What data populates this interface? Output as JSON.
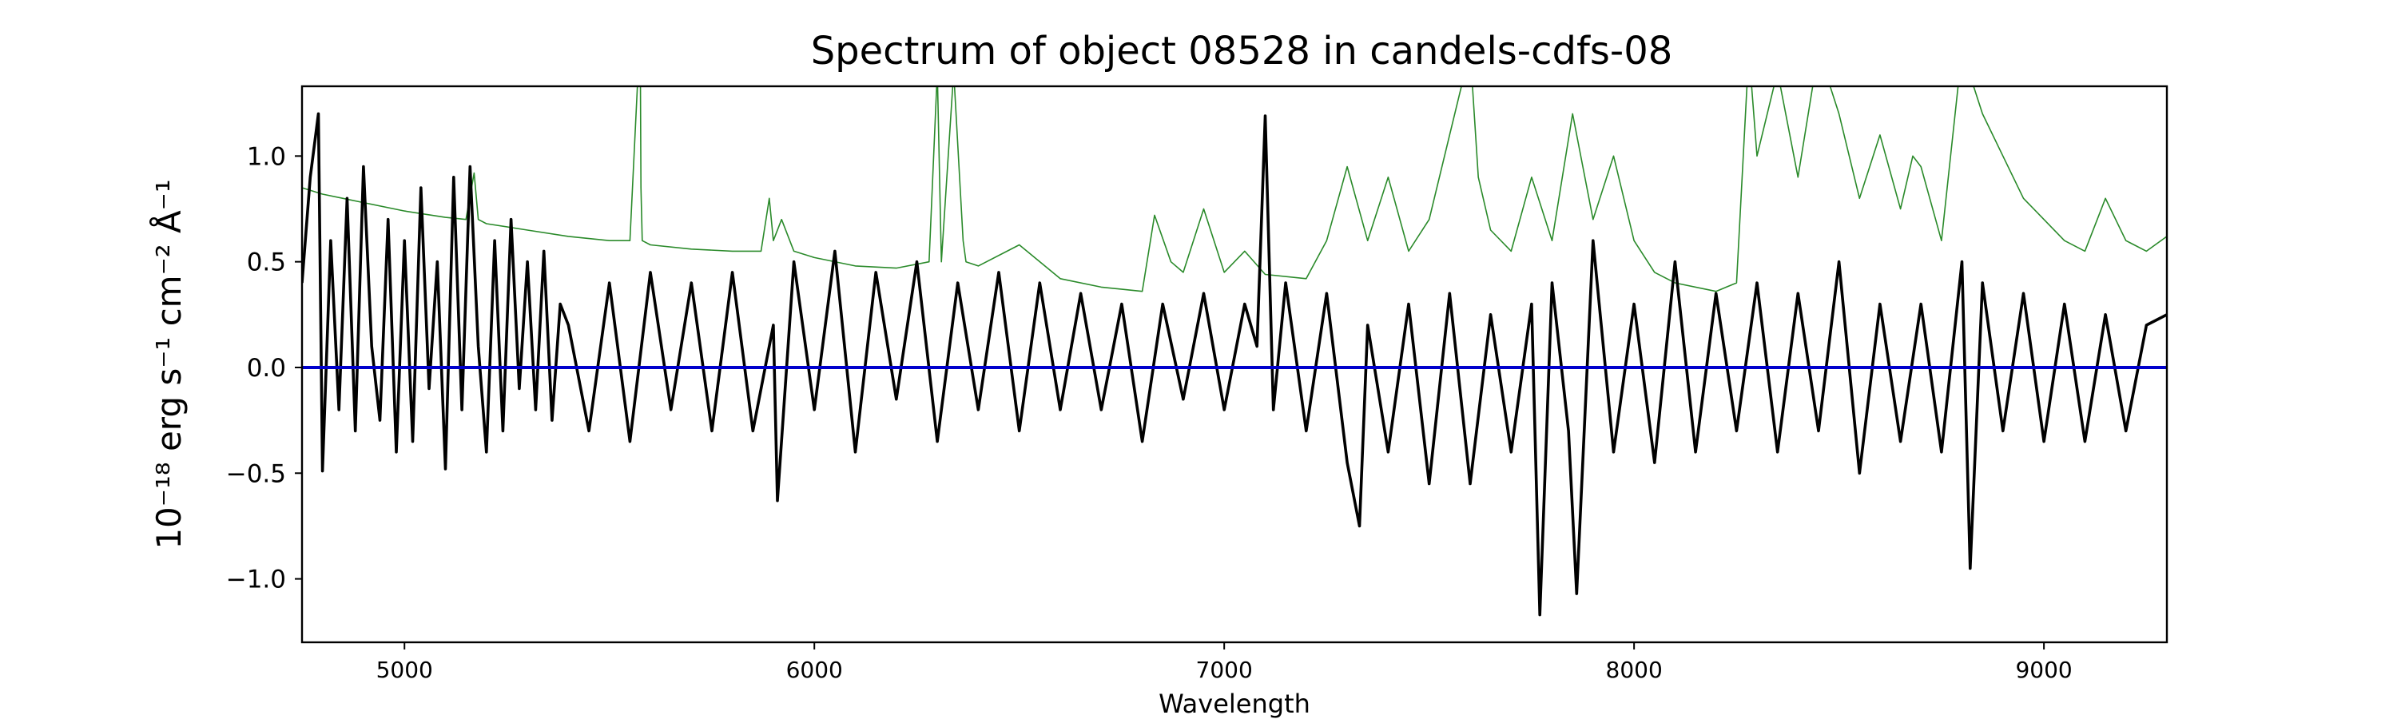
{
  "chart_data": {
    "type": "line",
    "title": "Spectrum of object 08528 in candels-cdfs-08",
    "xlabel": "Wavelength",
    "ylabel": "10⁻¹⁸ erg s⁻¹ cm⁻² Å⁻¹",
    "xlim": [
      4750,
      9300
    ],
    "ylim": [
      -1.3,
      1.33
    ],
    "x_ticks": [
      5000,
      6000,
      7000,
      8000,
      9000
    ],
    "x_tick_labels": [
      "5000",
      "6000",
      "7000",
      "8000",
      "9000"
    ],
    "y_ticks": [
      1.0,
      0.5,
      0.0,
      -0.5,
      -1.0
    ],
    "y_tick_labels": [
      "1.0",
      "0.5",
      "0.0",
      "−0.5",
      "−1.0"
    ],
    "grid": false,
    "series": [
      {
        "role": "noise",
        "color": "#2a8a2a",
        "x": [
          4750,
          4800,
          4850,
          4900,
          5000,
          5100,
          5150,
          5170,
          5180,
          5200,
          5300,
          5400,
          5500,
          5550,
          5575,
          5577,
          5580,
          5600,
          5700,
          5800,
          5870,
          5890,
          5900,
          5920,
          5950,
          6000,
          6100,
          6200,
          6280,
          6300,
          6310,
          6340,
          6363,
          6370,
          6400,
          6500,
          6600,
          6700,
          6800,
          6830,
          6870,
          6900,
          6950,
          7000,
          7050,
          7100,
          7200,
          7250,
          7300,
          7350,
          7400,
          7450,
          7500,
          7550,
          7600,
          7620,
          7650,
          7700,
          7750,
          7800,
          7850,
          7900,
          7950,
          8000,
          8050,
          8100,
          8200,
          8250,
          8280,
          8300,
          8350,
          8400,
          8450,
          8500,
          8550,
          8600,
          8650,
          8680,
          8700,
          8750,
          8800,
          8850,
          8900,
          8950,
          9000,
          9050,
          9100,
          9150,
          9200,
          9250,
          9300
        ],
        "values": [
          0.85,
          0.82,
          0.8,
          0.78,
          0.74,
          0.71,
          0.7,
          0.92,
          0.7,
          0.68,
          0.65,
          0.62,
          0.6,
          0.6,
          1.6,
          0.85,
          0.6,
          0.58,
          0.56,
          0.55,
          0.55,
          0.8,
          0.6,
          0.7,
          0.55,
          0.52,
          0.48,
          0.47,
          0.5,
          1.4,
          0.5,
          1.4,
          0.6,
          0.5,
          0.48,
          0.58,
          0.42,
          0.38,
          0.36,
          0.72,
          0.5,
          0.45,
          0.75,
          0.45,
          0.55,
          0.44,
          0.42,
          0.6,
          0.95,
          0.6,
          0.9,
          0.55,
          0.7,
          1.1,
          1.5,
          0.9,
          0.65,
          0.55,
          0.9,
          0.6,
          1.2,
          0.7,
          1.0,
          0.6,
          0.45,
          0.4,
          0.36,
          0.4,
          1.5,
          1.0,
          1.4,
          0.9,
          1.5,
          1.2,
          0.8,
          1.1,
          0.75,
          1.0,
          0.95,
          0.6,
          1.5,
          1.2,
          1.0,
          0.8,
          0.7,
          0.6,
          0.55,
          0.8,
          0.6,
          0.55,
          0.62
        ]
      },
      {
        "role": "flux",
        "color": "#000000",
        "x": [
          4750,
          4770,
          4790,
          4800,
          4820,
          4840,
          4860,
          4880,
          4900,
          4920,
          4940,
          4960,
          4980,
          5000,
          5020,
          5040,
          5060,
          5080,
          5100,
          5120,
          5140,
          5160,
          5180,
          5200,
          5220,
          5240,
          5260,
          5280,
          5300,
          5320,
          5340,
          5360,
          5380,
          5400,
          5450,
          5500,
          5550,
          5600,
          5650,
          5700,
          5750,
          5800,
          5850,
          5900,
          5910,
          5950,
          6000,
          6050,
          6100,
          6150,
          6200,
          6250,
          6300,
          6350,
          6400,
          6450,
          6500,
          6550,
          6600,
          6650,
          6700,
          6750,
          6800,
          6850,
          6900,
          6950,
          7000,
          7050,
          7080,
          7100,
          7120,
          7150,
          7200,
          7250,
          7300,
          7330,
          7350,
          7400,
          7450,
          7500,
          7550,
          7600,
          7650,
          7700,
          7750,
          7770,
          7800,
          7840,
          7860,
          7900,
          7950,
          8000,
          8050,
          8100,
          8150,
          8200,
          8250,
          8300,
          8350,
          8400,
          8450,
          8500,
          8550,
          8600,
          8650,
          8700,
          8750,
          8800,
          8820,
          8850,
          8900,
          8950,
          9000,
          9050,
          9100,
          9150,
          9200,
          9250,
          9300
        ],
        "values": [
          0.4,
          0.9,
          1.2,
          -0.49,
          0.6,
          -0.2,
          0.8,
          -0.3,
          0.95,
          0.1,
          -0.25,
          0.7,
          -0.4,
          0.6,
          -0.35,
          0.85,
          -0.1,
          0.5,
          -0.48,
          0.9,
          -0.2,
          0.95,
          0.1,
          -0.4,
          0.6,
          -0.3,
          0.7,
          -0.1,
          0.5,
          -0.2,
          0.55,
          -0.25,
          0.3,
          0.2,
          -0.3,
          0.4,
          -0.35,
          0.45,
          -0.2,
          0.4,
          -0.3,
          0.45,
          -0.3,
          0.2,
          -0.63,
          0.5,
          -0.2,
          0.55,
          -0.4,
          0.45,
          -0.15,
          0.5,
          -0.35,
          0.4,
          -0.2,
          0.45,
          -0.3,
          0.4,
          -0.2,
          0.35,
          -0.2,
          0.3,
          -0.35,
          0.3,
          -0.15,
          0.35,
          -0.2,
          0.3,
          0.1,
          1.19,
          -0.2,
          0.4,
          -0.3,
          0.35,
          -0.45,
          -0.75,
          0.2,
          -0.4,
          0.3,
          -0.55,
          0.35,
          -0.55,
          0.25,
          -0.4,
          0.3,
          -1.17,
          0.4,
          -0.3,
          -1.07,
          0.6,
          -0.4,
          0.3,
          -0.45,
          0.5,
          -0.4,
          0.35,
          -0.3,
          0.4,
          -0.4,
          0.35,
          -0.3,
          0.5,
          -0.5,
          0.3,
          -0.35,
          0.3,
          -0.4,
          0.5,
          -0.95,
          0.4,
          -0.3,
          0.35,
          -0.35,
          0.3,
          -0.35,
          0.25,
          -0.3,
          0.2,
          0.25
        ]
      },
      {
        "role": "zero",
        "color": "#0000cc",
        "x": [
          4750,
          9300
        ],
        "values": [
          0.0,
          0.0
        ]
      }
    ]
  }
}
